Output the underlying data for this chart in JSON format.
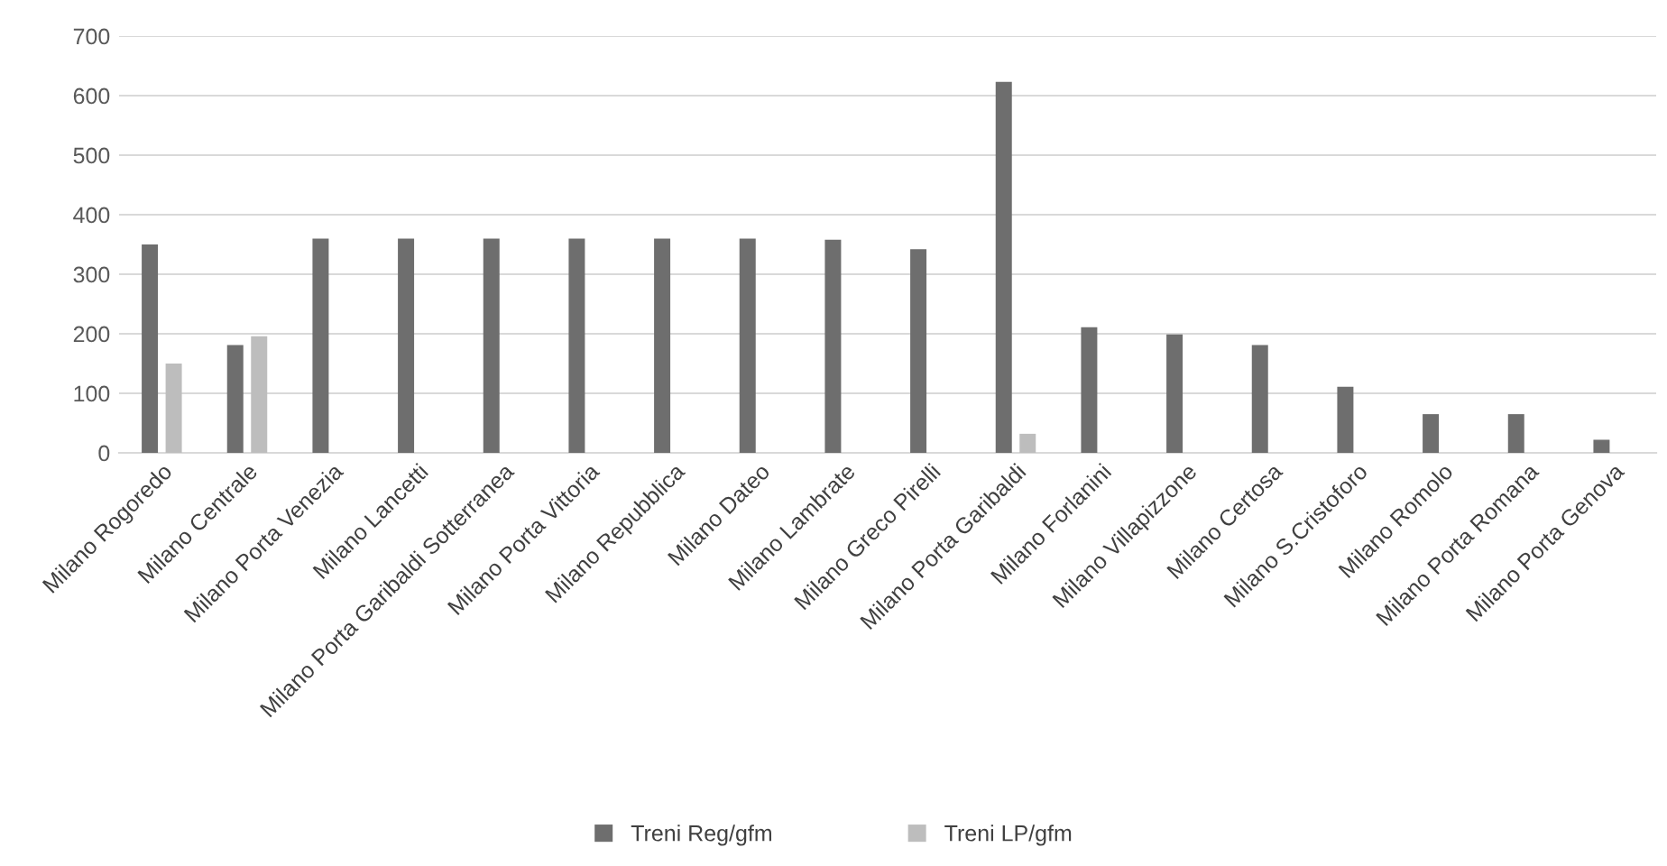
{
  "chart_data": {
    "type": "bar",
    "categories": [
      "Milano Rogoredo",
      "Milano Centrale",
      "Milano Porta Venezia",
      "Milano Lancetti",
      "Milano Porta Garibaldi Sotterranea",
      "Milano Porta Vittoria",
      "Milano Repubblica",
      "Milano Dateo",
      "Milano Lambrate",
      "Milano Greco Pirelli",
      "Milano Porta Garibaldi",
      "Milano Forlanini",
      "Milano Villapizzone",
      "Milano Certosa",
      "Milano S.Cristoforo",
      "Milano Romolo",
      "Milano Porta Romana",
      "Milano Porta Genova"
    ],
    "series": [
      {
        "name": "Treni Reg/gfm",
        "color": "#6e6e6e",
        "values": [
          350,
          181,
          360,
          360,
          360,
          360,
          360,
          360,
          358,
          342,
          623,
          211,
          199,
          181,
          111,
          65,
          65,
          22
        ]
      },
      {
        "name": "Treni LP/gfm",
        "color": "#bdbdbd",
        "values": [
          150,
          196,
          null,
          null,
          null,
          null,
          null,
          null,
          null,
          null,
          32,
          null,
          null,
          null,
          null,
          null,
          null,
          null
        ]
      }
    ],
    "ylim": [
      0,
      700
    ],
    "yticks": [
      0,
      100,
      200,
      300,
      400,
      500,
      600,
      700
    ],
    "grid": "y",
    "legend": "bottom"
  }
}
